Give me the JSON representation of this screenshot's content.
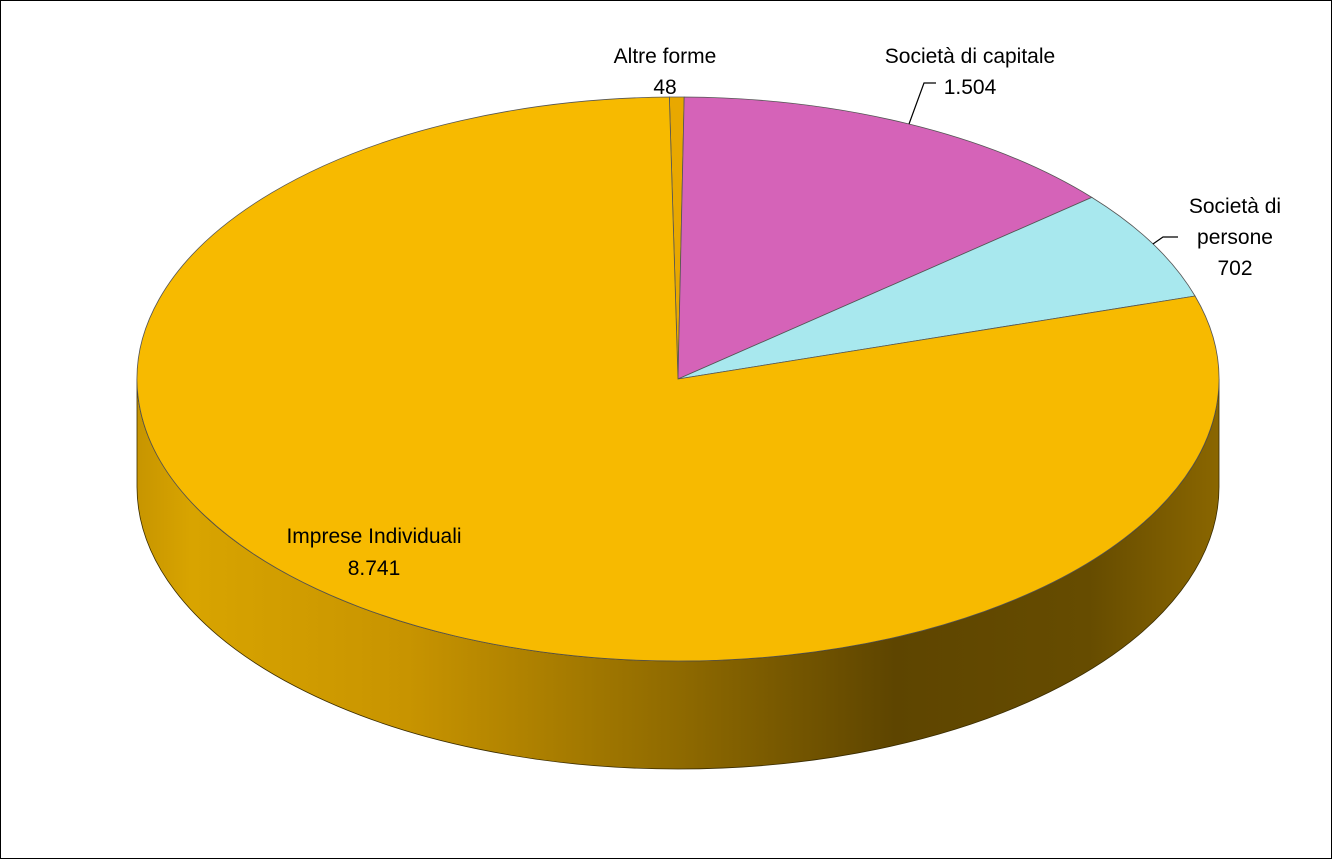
{
  "chart_data": {
    "type": "pie",
    "title": "",
    "slices": [
      {
        "name": "Altre forme",
        "value": 48,
        "value_label": "48",
        "color": "#E8A800"
      },
      {
        "name": "Società di capitale",
        "value": 1504,
        "value_label": "1.504",
        "color": "#D563B8"
      },
      {
        "name": "Società di persone",
        "value": 702,
        "value_label": "702",
        "color": "#A8E8EE"
      },
      {
        "name": "Imprese Individuali",
        "value": 8741,
        "value_label": "8.741",
        "color": "#F7BA00"
      }
    ],
    "legend": "none"
  }
}
